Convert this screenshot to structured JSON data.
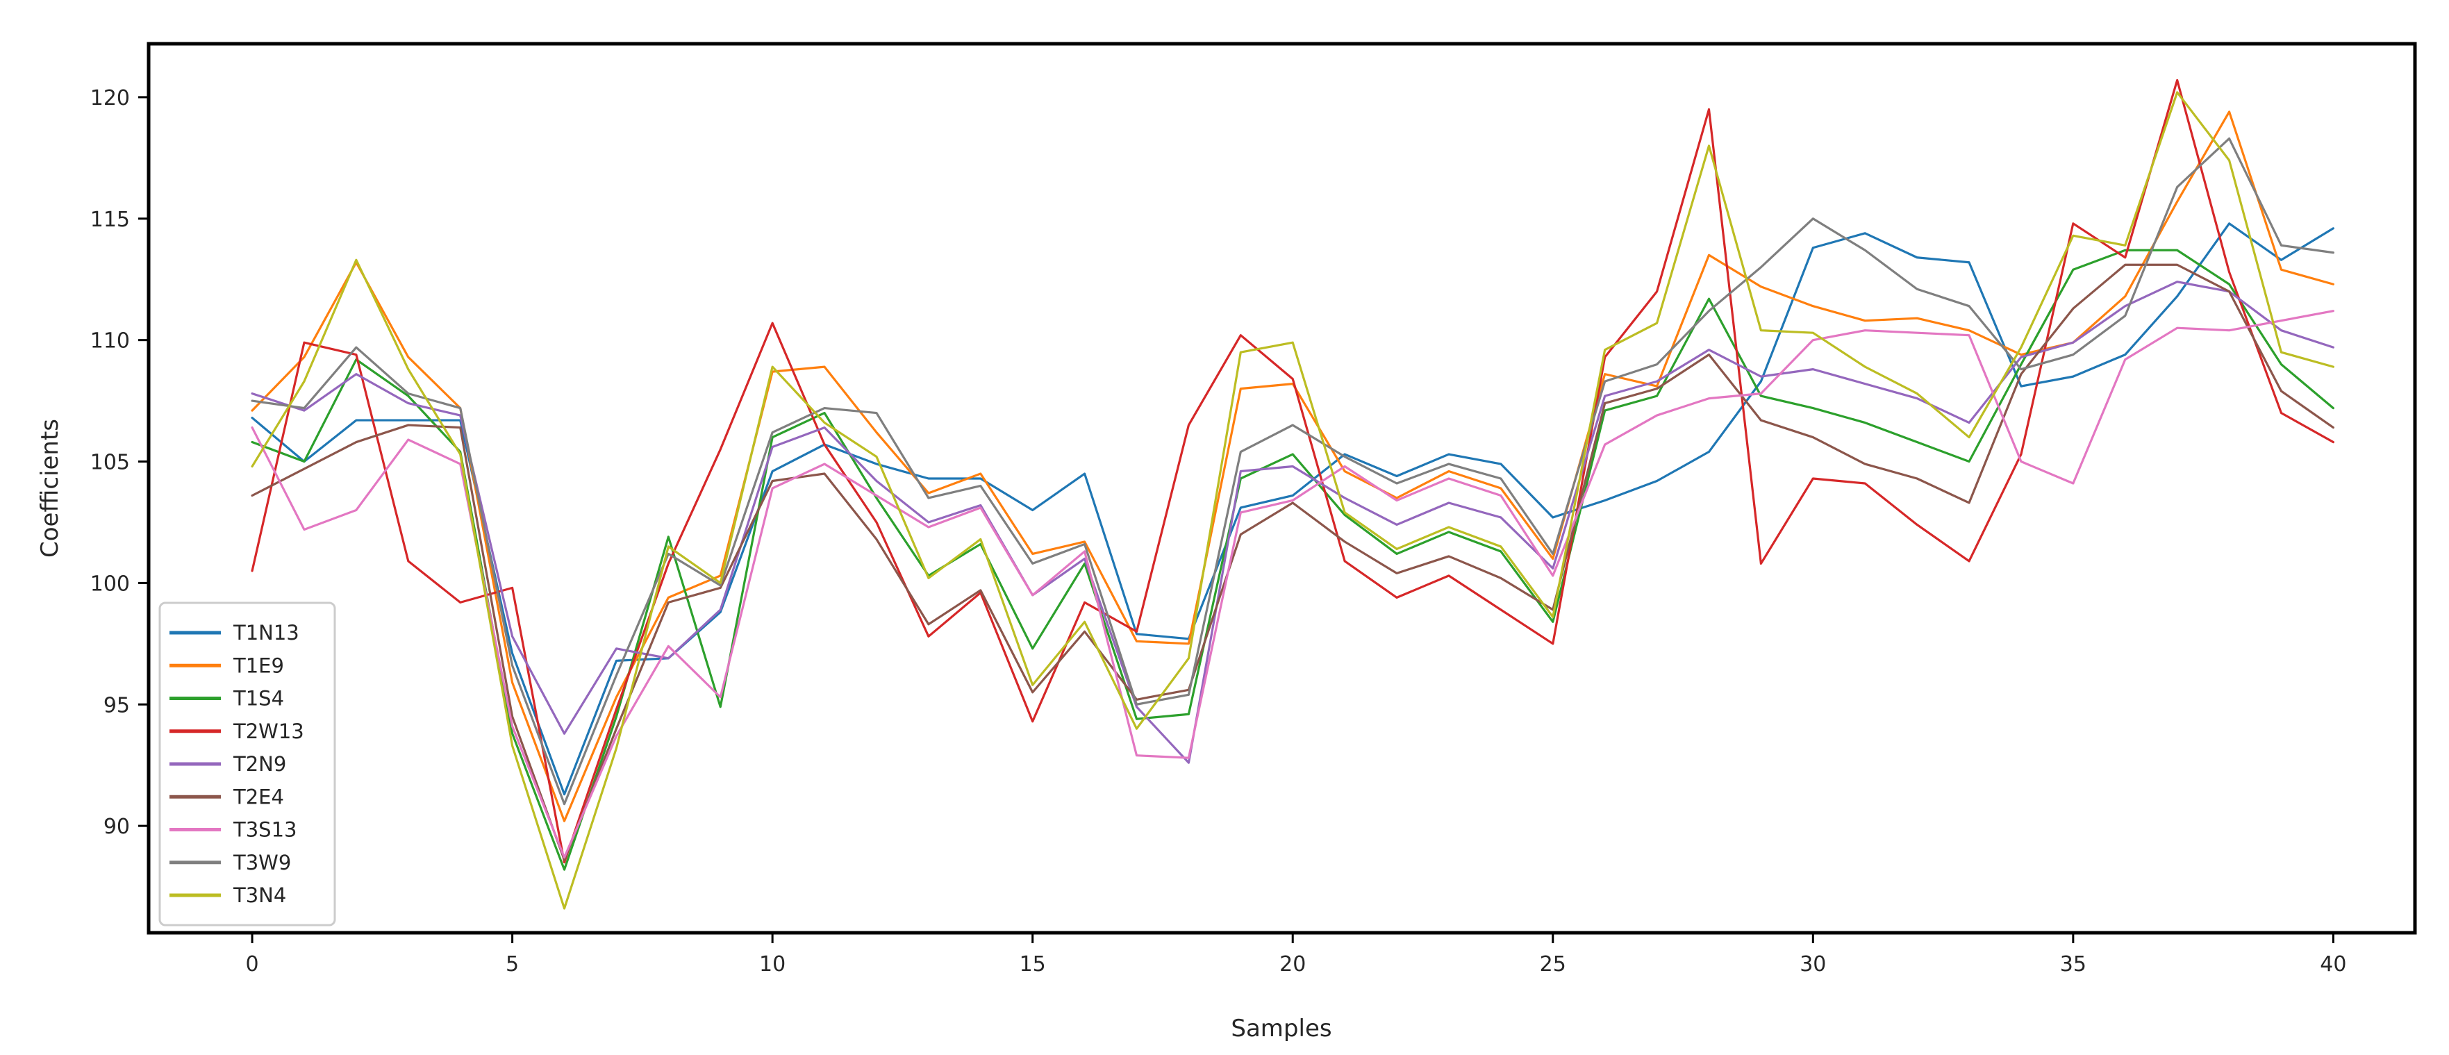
{
  "chart_data": {
    "type": "line",
    "title": "",
    "xlabel": "Samples",
    "ylabel": "Coefficients",
    "grid": false,
    "legend_position": "lower left",
    "xlim": [
      -1.99,
      41.57
    ],
    "ylim": [
      85.6,
      122.2
    ],
    "xticks": [
      0,
      5,
      10,
      15,
      20,
      25,
      30,
      35,
      40
    ],
    "yticks": [
      90,
      95,
      100,
      105,
      110,
      115,
      120
    ],
    "x": [
      0,
      1,
      2,
      3,
      4,
      5,
      6,
      7,
      8,
      9,
      10,
      11,
      12,
      13,
      14,
      15,
      16,
      17,
      18,
      19,
      20,
      21,
      22,
      23,
      24,
      25,
      26,
      27,
      28,
      29,
      30,
      31,
      32,
      33,
      34,
      35,
      36,
      37,
      38,
      39,
      40
    ],
    "series": [
      {
        "name": "T1N13",
        "color": "#1f77b4",
        "values": [
          106.8,
          105.0,
          106.7,
          106.7,
          106.7,
          97.1,
          91.3,
          96.8,
          96.9,
          98.8,
          104.6,
          105.7,
          104.9,
          104.3,
          104.3,
          103.0,
          104.5,
          97.9,
          97.7,
          103.1,
          103.6,
          105.3,
          104.4,
          105.3,
          104.9,
          102.7,
          103.4,
          104.2,
          105.4,
          108.3,
          113.8,
          114.4,
          113.4,
          113.2,
          108.1,
          108.5,
          109.4,
          111.8,
          114.8,
          113.3,
          114.6
        ]
      },
      {
        "name": "T1E9",
        "color": "#ff7f0e",
        "values": [
          107.1,
          109.3,
          113.2,
          109.3,
          107.2,
          95.9,
          90.2,
          95.3,
          99.4,
          100.3,
          108.7,
          108.9,
          106.2,
          103.7,
          104.5,
          101.2,
          101.7,
          97.6,
          97.5,
          108.0,
          108.2,
          104.6,
          103.5,
          104.6,
          103.9,
          101.0,
          108.6,
          108.1,
          113.5,
          112.2,
          111.4,
          110.8,
          110.9,
          110.4,
          109.4,
          109.9,
          111.8,
          115.7,
          119.4,
          112.9,
          112.3
        ]
      },
      {
        "name": "T1S4",
        "color": "#2ca02c",
        "values": [
          105.8,
          105.0,
          109.2,
          107.7,
          105.4,
          93.8,
          88.2,
          94.5,
          101.9,
          94.9,
          106.0,
          107.0,
          103.5,
          100.3,
          101.6,
          97.3,
          100.8,
          94.4,
          94.6,
          104.3,
          105.3,
          102.8,
          101.2,
          102.1,
          101.3,
          98.4,
          107.1,
          107.7,
          111.7,
          107.7,
          107.2,
          106.6,
          105.8,
          105.0,
          109.0,
          112.9,
          113.7,
          113.7,
          112.3,
          109.0,
          107.2
        ]
      },
      {
        "name": "T2W13",
        "color": "#d62728",
        "values": [
          100.5,
          109.9,
          109.4,
          100.9,
          99.2,
          99.8,
          88.5,
          94.8,
          100.8,
          105.5,
          110.7,
          105.7,
          102.5,
          97.8,
          99.6,
          94.3,
          99.2,
          98.0,
          106.5,
          110.2,
          108.4,
          100.9,
          99.4,
          100.3,
          98.9,
          97.5,
          109.3,
          112.0,
          119.5,
          100.8,
          104.3,
          104.1,
          102.4,
          100.9,
          105.3,
          114.8,
          113.4,
          120.7,
          112.8,
          107.0,
          105.8
        ]
      },
      {
        "name": "T2N9",
        "color": "#9467bd",
        "values": [
          107.8,
          107.1,
          108.6,
          107.4,
          106.9,
          97.8,
          93.8,
          97.3,
          96.9,
          98.9,
          105.6,
          106.4,
          104.2,
          102.5,
          103.2,
          99.5,
          101.0,
          94.9,
          92.6,
          104.6,
          104.8,
          103.5,
          102.4,
          103.3,
          102.7,
          100.6,
          107.7,
          108.3,
          109.6,
          108.5,
          108.8,
          108.2,
          107.6,
          106.6,
          109.3,
          109.9,
          111.4,
          112.4,
          112.0,
          110.4,
          109.7
        ]
      },
      {
        "name": "T2E4",
        "color": "#8c564b",
        "values": [
          103.6,
          104.7,
          105.8,
          106.5,
          106.4,
          94.5,
          88.6,
          94.0,
          99.2,
          99.8,
          104.2,
          104.5,
          101.8,
          98.3,
          99.7,
          95.5,
          98.0,
          95.2,
          95.6,
          102.0,
          103.3,
          101.7,
          100.4,
          101.1,
          100.2,
          98.9,
          107.4,
          108.0,
          109.4,
          106.7,
          106.0,
          104.9,
          104.3,
          103.3,
          108.6,
          111.3,
          113.1,
          113.1,
          112.0,
          107.9,
          106.4
        ]
      },
      {
        "name": "T3S13",
        "color": "#e377c2",
        "values": [
          106.4,
          102.2,
          103.0,
          105.9,
          104.9,
          94.1,
          88.7,
          93.7,
          97.4,
          95.3,
          103.9,
          104.9,
          103.6,
          102.3,
          103.1,
          99.5,
          101.3,
          92.9,
          92.8,
          102.9,
          103.4,
          104.8,
          103.4,
          104.3,
          103.6,
          100.3,
          105.7,
          106.9,
          107.6,
          107.8,
          110.0,
          110.4,
          110.3,
          110.2,
          105.0,
          104.1,
          109.2,
          110.5,
          110.4,
          110.8,
          111.2
        ]
      },
      {
        "name": "T3W9",
        "color": "#7f7f7f",
        "values": [
          107.5,
          107.2,
          109.7,
          107.8,
          107.2,
          96.6,
          90.9,
          96.2,
          101.2,
          99.9,
          106.2,
          107.2,
          107.0,
          103.5,
          104.0,
          100.8,
          101.6,
          95.0,
          95.4,
          105.4,
          106.5,
          105.2,
          104.1,
          104.9,
          104.3,
          101.2,
          108.3,
          109.0,
          111.2,
          113.0,
          115.0,
          113.7,
          112.1,
          111.4,
          108.8,
          109.4,
          111.0,
          116.3,
          118.3,
          113.9,
          113.6
        ]
      },
      {
        "name": "T3N4",
        "color": "#bcbd22",
        "values": [
          104.8,
          108.3,
          113.3,
          108.8,
          105.3,
          93.3,
          86.6,
          93.2,
          101.5,
          100.0,
          108.9,
          106.6,
          105.2,
          100.2,
          101.8,
          95.8,
          98.4,
          94.0,
          96.9,
          109.5,
          109.9,
          102.9,
          101.4,
          102.3,
          101.5,
          98.6,
          109.6,
          110.7,
          118.0,
          110.4,
          110.3,
          108.9,
          107.8,
          106.0,
          109.7,
          114.3,
          113.9,
          120.2,
          117.4,
          109.5,
          108.9
        ]
      }
    ]
  }
}
